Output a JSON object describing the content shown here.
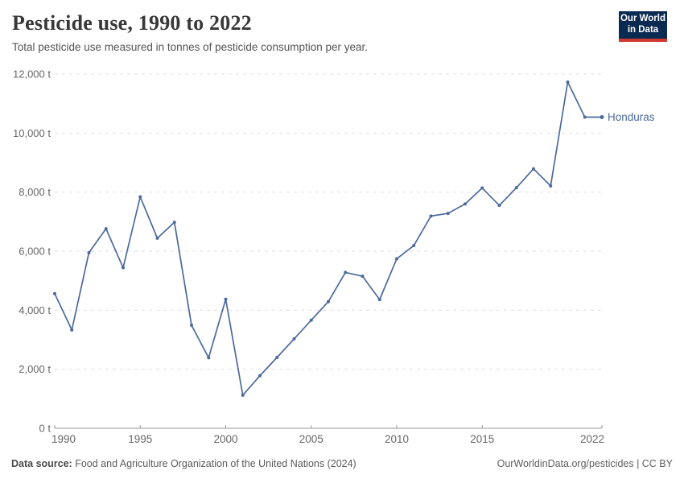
{
  "header": {
    "title": "Pesticide use, 1990 to 2022",
    "subtitle": "Total pesticide use measured in tonnes of pesticide consumption per year."
  },
  "logo": {
    "line1": "Our World",
    "line2": "in Data",
    "bg_color": "#0a2a51",
    "stripe_color": "#d0392f"
  },
  "chart_data": {
    "type": "line",
    "title": "Pesticide use, 1990 to 2022",
    "unit": "tonnes",
    "grid": "dashed horizontal gridlines",
    "legend": "series label at end of line",
    "xlim": [
      1990,
      2022
    ],
    "ylim": [
      0,
      12000
    ],
    "x": [
      1990,
      1991,
      1992,
      1993,
      1994,
      1995,
      1996,
      1997,
      1998,
      1999,
      2000,
      2001,
      2002,
      2003,
      2004,
      2005,
      2006,
      2007,
      2008,
      2009,
      2010,
      2011,
      2012,
      2013,
      2014,
      2015,
      2016,
      2017,
      2018,
      2019,
      2020,
      2021,
      2022
    ],
    "series": [
      {
        "name": "Honduras",
        "color": "#4c6a9c",
        "values": [
          4560,
          3330,
          5950,
          6760,
          5440,
          7840,
          6440,
          6980,
          3490,
          2390,
          4370,
          1120,
          1780,
          2400,
          3030,
          3660,
          4290,
          5280,
          5150,
          4360,
          5740,
          6190,
          7190,
          7280,
          7600,
          8140,
          7550,
          8150,
          8790,
          8210,
          11730,
          10540,
          10540
        ]
      }
    ],
    "yticks": [
      {
        "value": 0,
        "label": "0 t"
      },
      {
        "value": 2000,
        "label": "2,000 t"
      },
      {
        "value": 4000,
        "label": "4,000 t"
      },
      {
        "value": 6000,
        "label": "6,000 t"
      },
      {
        "value": 8000,
        "label": "8,000 t"
      },
      {
        "value": 10000,
        "label": "10,000 t"
      },
      {
        "value": 12000,
        "label": "12,000 t"
      }
    ],
    "xticks": [
      {
        "value": 1990,
        "label": "1990"
      },
      {
        "value": 1995,
        "label": "1995"
      },
      {
        "value": 2000,
        "label": "2000"
      },
      {
        "value": 2005,
        "label": "2005"
      },
      {
        "value": 2010,
        "label": "2010"
      },
      {
        "value": 2015,
        "label": "2015"
      },
      {
        "value": 2022,
        "label": "2022"
      }
    ],
    "colors": {
      "gridline": "#dddddd",
      "axis": "#999999",
      "tick_label": "#666666"
    }
  },
  "footer": {
    "source_label": "Data source:",
    "source_text": " Food and Agriculture Organization of the United Nations (2024)",
    "right_text": "OurWorldinData.org/pesticides | CC BY"
  }
}
